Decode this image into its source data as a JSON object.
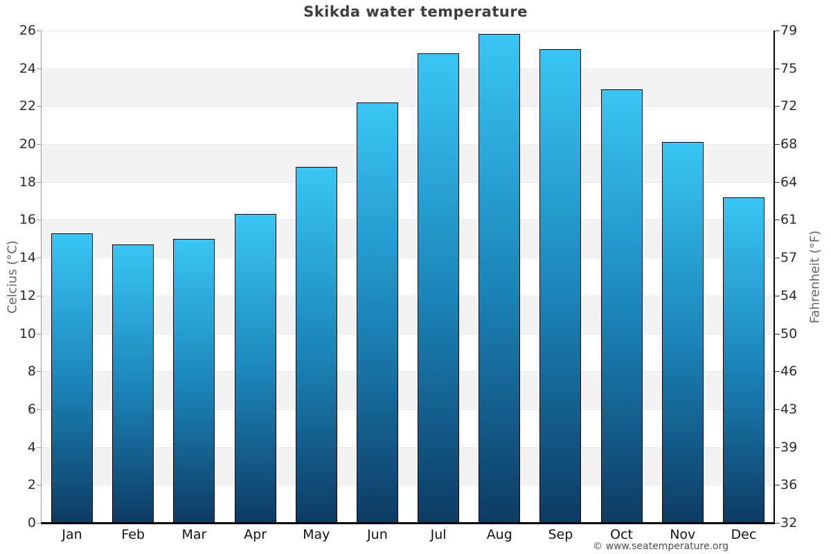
{
  "title": "Skikda water temperature",
  "copyright": "© www.seatemperature.org",
  "axes": {
    "left_title": "Celcius (°C)",
    "right_title": "Fahrenheit (°F)",
    "celsius_tick_labels": [
      "26",
      "24",
      "22",
      "20",
      "18",
      "16",
      "14",
      "12",
      "10",
      "8",
      "6",
      "4",
      "2",
      "0"
    ],
    "fahrenheit_tick_labels": [
      "79",
      "75",
      "72",
      "68",
      "64",
      "61",
      "57",
      "54",
      "50",
      "46",
      "43",
      "39",
      "36",
      "32"
    ]
  },
  "colors": {
    "bar_gradient_top": "#39c6f4",
    "bar_gradient_mid": "#1b84b8",
    "bar_gradient_bottom": "#0d3b63",
    "bar_border": "#000000",
    "stripe_gray": "#f3f3f3",
    "stripe_white": "#ffffff",
    "gridline": "#e8e8e8",
    "title_text": "#3e3e3e",
    "axis_title_text": "#666666"
  },
  "chart_data": {
    "type": "bar",
    "title": "Skikda water temperature",
    "categories": [
      "Jan",
      "Feb",
      "Mar",
      "Apr",
      "May",
      "Jun",
      "Jul",
      "Aug",
      "Sep",
      "Oct",
      "Nov",
      "Dec"
    ],
    "values": [
      15.3,
      14.7,
      15.0,
      16.3,
      18.8,
      22.2,
      24.8,
      25.8,
      25.0,
      22.9,
      20.1,
      17.2
    ],
    "xlabel": "",
    "ylabel": "Celcius (°C)",
    "ylabel_secondary": "Fahrenheit (°F)",
    "ylim": [
      0,
      26
    ],
    "ytick_step": 2,
    "secondary_tick_values": [
      79,
      75,
      72,
      68,
      64,
      61,
      57,
      54,
      50,
      46,
      43,
      39,
      36,
      32
    ],
    "grid": "striped-bands",
    "legend": "none"
  }
}
